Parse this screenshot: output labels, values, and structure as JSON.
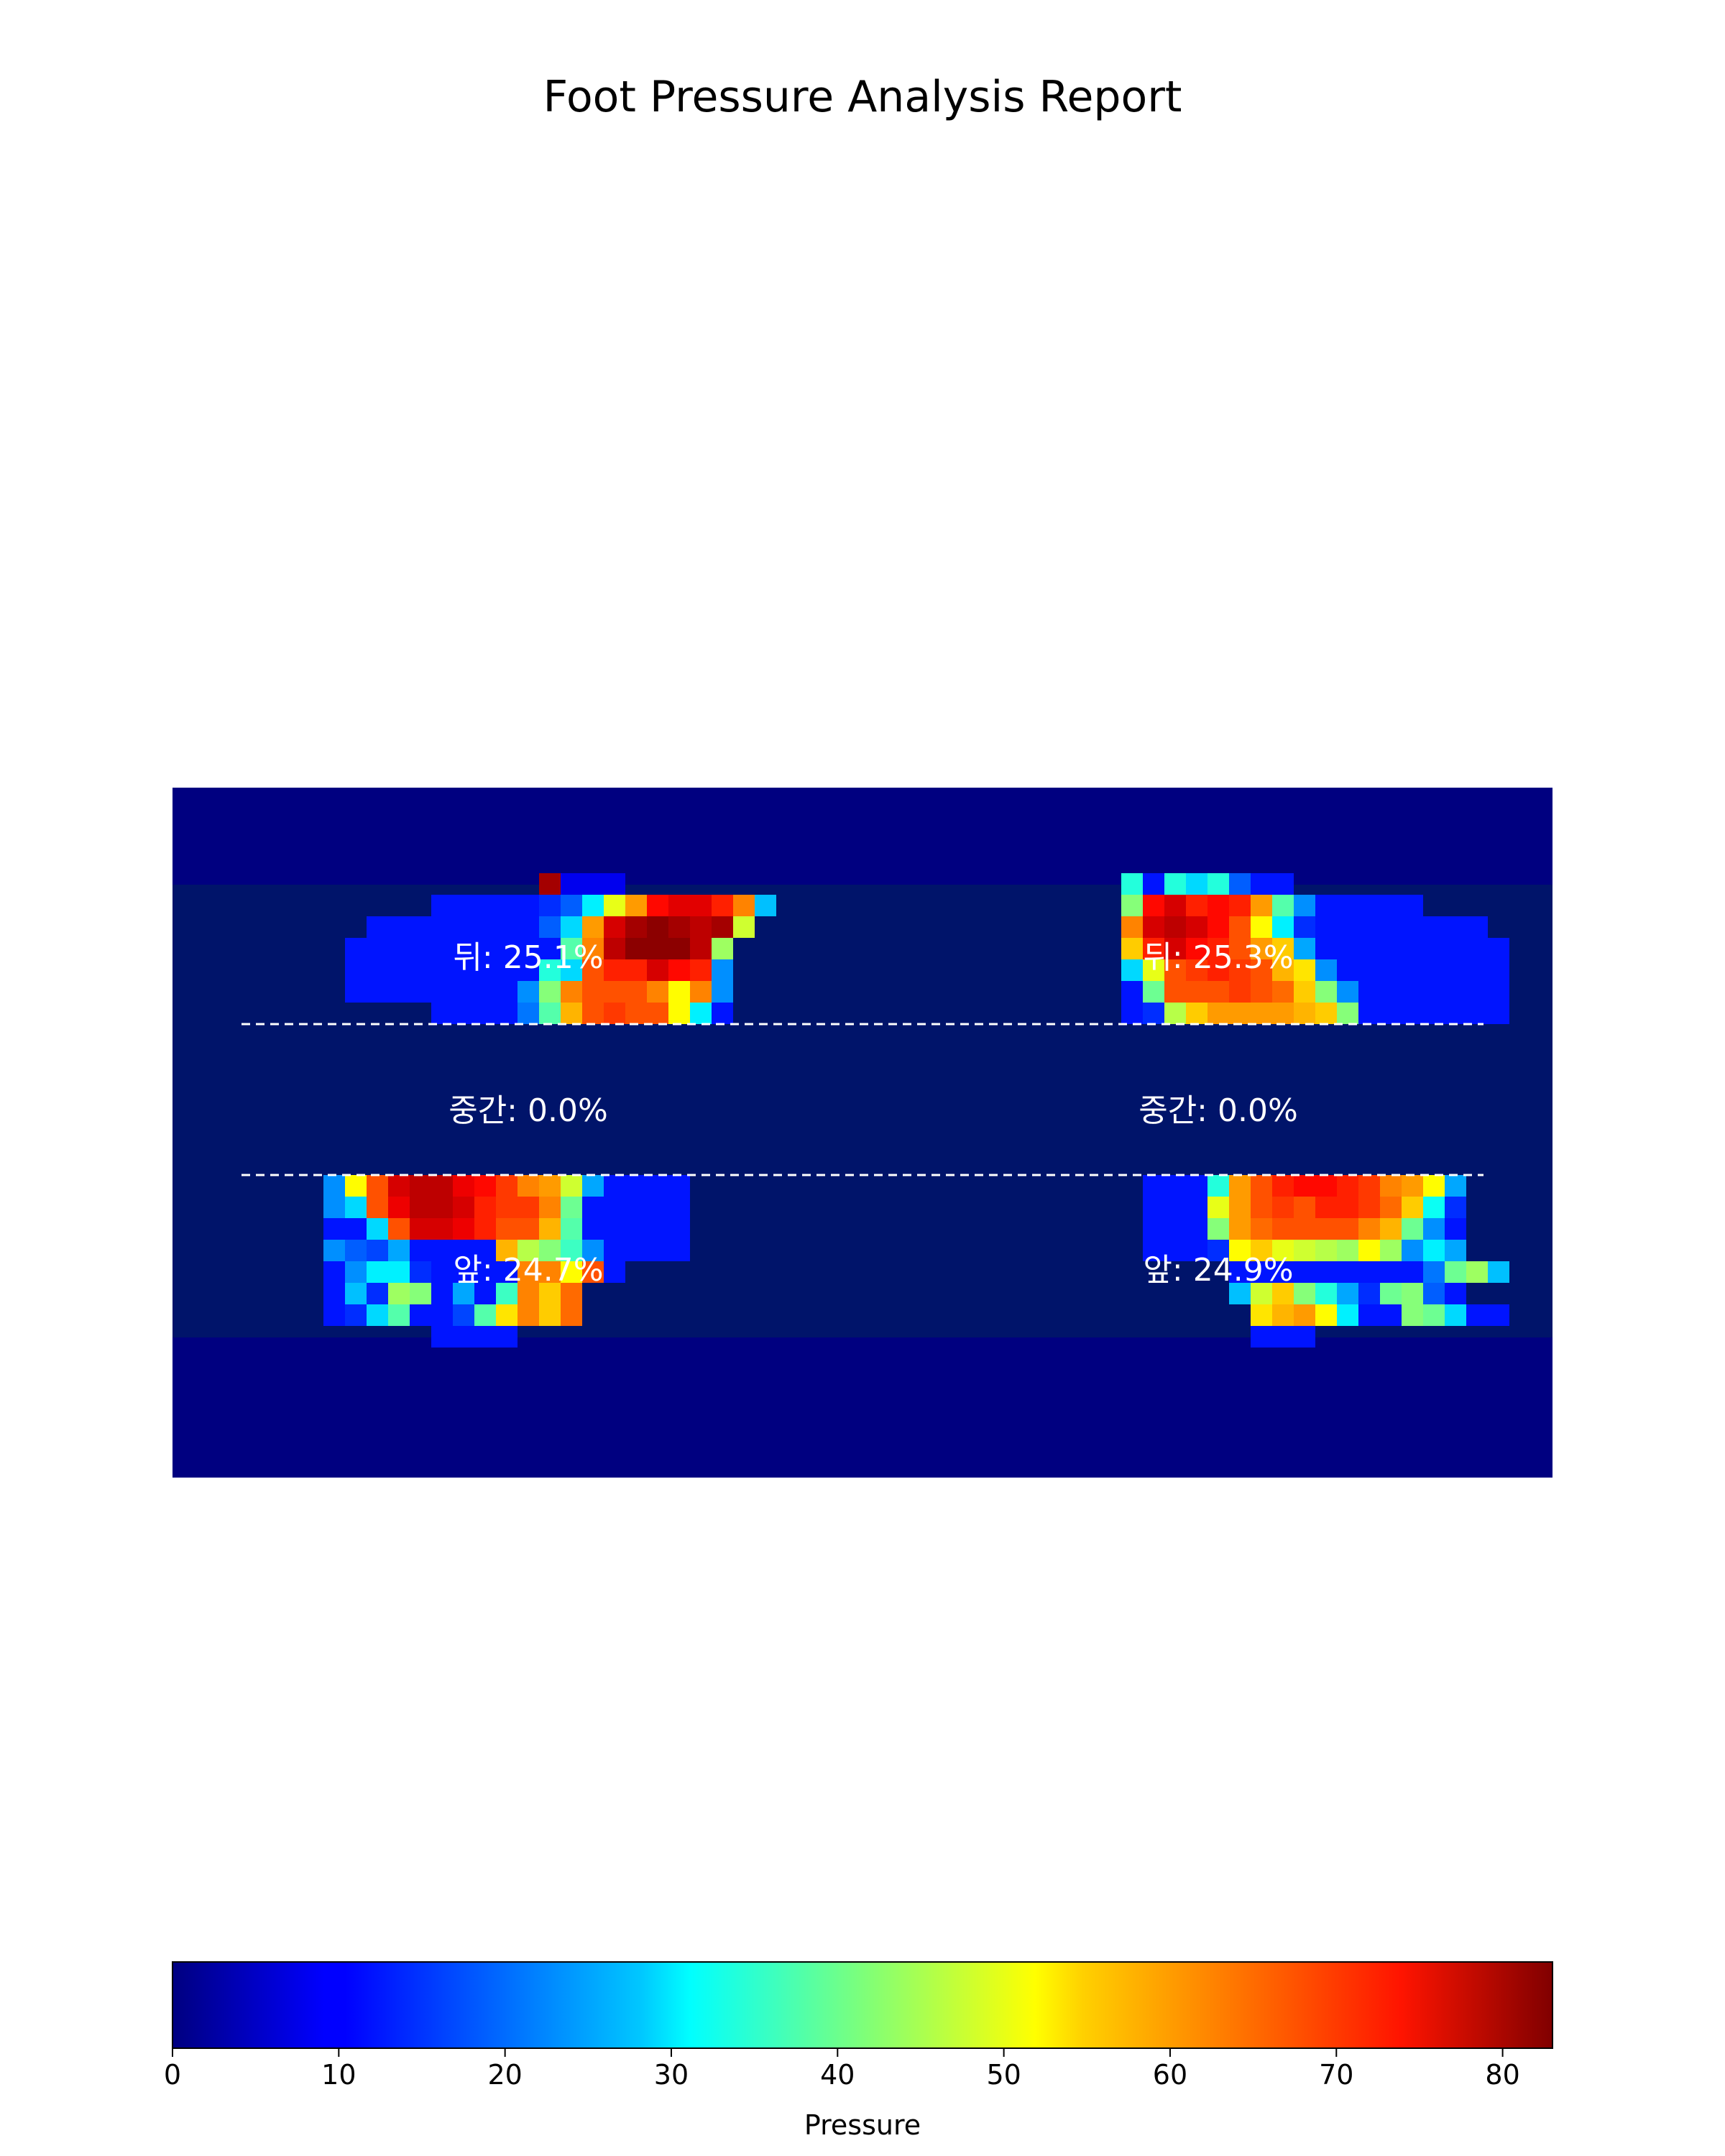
{
  "chart_data": {
    "type": "heatmap",
    "title": "Foot Pressure Analysis Report",
    "colormap": "jet",
    "value_range": [
      0,
      83
    ],
    "grid": false,
    "cells": {
      "columns": 64,
      "rows": 32,
      "background_outer": "#000080",
      "background_inner": "#00146a",
      "blocks": [
        {
          "start": [
            16,
            10
          ],
          "end": [
            23,
            10
          ],
          "value": 10
        },
        {
          "start": [
            16,
            11
          ],
          "end": [
            23,
            11
          ],
          "value": 12
        },
        {
          "start": [
            25,
            5
          ],
          "end": [
            30,
            5
          ],
          "value": 9
        },
        {
          "start": [
            26,
            4
          ],
          "end": [
            27,
            4
          ],
          "value": 9
        },
        {
          "start": [
            24,
            6
          ],
          "end": [
            30,
            6
          ],
          "value": 12
        },
        {
          "start": [
            23,
            7
          ],
          "end": [
            29,
            7
          ],
          "value": 12
        },
        {
          "start": [
            18,
            8
          ],
          "end": [
            21,
            8
          ],
          "value": 76
        },
        {
          "start": [
            22,
            9
          ],
          "end": [
            23,
            9
          ],
          "value": 66
        },
        {
          "start": [
            22,
            8
          ],
          "end": [
            23,
            8
          ],
          "value": 72
        },
        {
          "start": [
            22,
            5
          ],
          "end": [
            24,
            5
          ],
          "value": 72
        },
        {
          "start": [
            12,
            9
          ],
          "end": [
            14,
            9
          ],
          "value": 18
        },
        {
          "start": [
            12,
            8
          ],
          "end": [
            14,
            8
          ],
          "value": 34
        },
        {
          "start": [
            15,
            8
          ],
          "end": [
            17,
            8
          ],
          "value": 70
        },
        {
          "start": [
            15,
            9
          ],
          "end": [
            17,
            9
          ],
          "value": 42
        },
        {
          "start": [
            21,
            10
          ],
          "end": [
            23,
            10
          ],
          "value": 20
        },
        {
          "start": [
            9,
            9
          ],
          "end": [
            11,
            9
          ],
          "value": 12
        }
      ],
      "cell_values": [
        [
          5,
          0,
          0
        ],
        [
          5,
          0,
          0
        ]
      ]
    },
    "feet": [
      {
        "side": "left",
        "rear_label": "뒤: 25.1%",
        "mid_label": "중간: 0.0%",
        "front_label": "앞: 24.7%"
      },
      {
        "side": "right",
        "rear_label": "뒤: 25.3%",
        "mid_label": "중간: 0.0%",
        "front_label": "앞: 24.9%"
      }
    ],
    "colorbar": {
      "label": "Pressure",
      "ticks": [
        0,
        10,
        20,
        30,
        40,
        50,
        60,
        70,
        80
      ],
      "orientation": "horizontal"
    },
    "divider_lines": [
      "rear/mid boundary",
      "mid/front boundary"
    ],
    "divider_style": "dashed white"
  }
}
